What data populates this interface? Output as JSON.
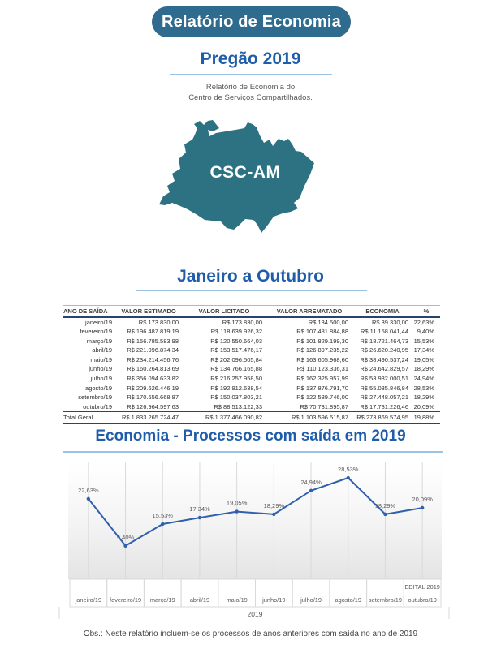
{
  "page": {
    "header_pill": "Relatório de Economia",
    "title": "Pregão 2019",
    "subtitle": {
      "line1": "Relatório de Economia do",
      "line2": "Centro de Serviços Compartilhados."
    },
    "map_label": "CSC-AM",
    "section_title": "Janeiro a Outubro",
    "note": "Obs.: Neste relatório incluem-se os processos de anos anteriores com saída no ano de 2019"
  },
  "table": {
    "columns": [
      "ANO DE SAÍDA",
      "VALOR ESTIMADO",
      "VALOR LICITADO",
      "VALOR ARREMATADO",
      "ECONOMIA",
      "%"
    ],
    "rows": [
      [
        "janeiro/19",
        "R$ 173.830,00",
        "R$ 173.830,00",
        "R$ 134.500,00",
        "R$ 39.330,00",
        "22,63%"
      ],
      [
        "fevereiro/19",
        "R$ 196.487.819,19",
        "R$ 118.639.926,32",
        "R$ 107.481.884,88",
        "R$ 11.158.041,44",
        "9,40%"
      ],
      [
        "março/19",
        "R$ 156.785.583,98",
        "R$ 120.550.664,03",
        "R$ 101.829.199,30",
        "R$ 18.721.464,73",
        "15,53%"
      ],
      [
        "abril/19",
        "R$ 221.996.874,34",
        "R$ 153.517.476,17",
        "R$ 126.897.235,22",
        "R$ 26.620.240,95",
        "17,34%"
      ],
      [
        "maio/19",
        "R$ 234.214.456,76",
        "R$ 202.096.505,84",
        "R$ 163.605.968,60",
        "R$ 38.490.537,24",
        "19,05%"
      ],
      [
        "junho/19",
        "R$ 160.264.813,69",
        "R$ 134.766.165,88",
        "R$ 110.123.336,31",
        "R$ 24.642.829,57",
        "18,29%"
      ],
      [
        "julho/19",
        "R$ 356.094.633,82",
        "R$ 216.257.958,50",
        "R$ 162.325.957,99",
        "R$ 53.932.000,51",
        "24,94%"
      ],
      [
        "agosto/19",
        "R$ 209.626.446,19",
        "R$ 192.912.638,54",
        "R$ 137.876.791,70",
        "R$ 55.035.846,84",
        "28,53%"
      ],
      [
        "setembro/19",
        "R$ 170.656.668,87",
        "R$ 150.037.803,21",
        "R$ 122.589.746,00",
        "R$ 27.448.057,21",
        "18,29%"
      ],
      [
        "outubro/19",
        "R$ 126.964.597,63",
        "R$ 88.513.122,33",
        "R$ 70.731.895,87",
        "R$ 17.781.226,46",
        "20,09%"
      ]
    ],
    "total_row": [
      "Total Geral",
      "R$ 1.833.265.724,47",
      "R$ 1.377.466.090,82",
      "R$ 1.103.596.515,87",
      "R$ 273.869.574,95",
      "19,88%"
    ]
  },
  "chart_data": {
    "type": "line",
    "title": "Economia - Processos com saída em 2019",
    "categories": [
      "janeiro/19",
      "fevereiro/19",
      "março/19",
      "abril/19",
      "maio/19",
      "junho/19",
      "julho/19",
      "agosto/19",
      "setembro/19",
      "outubro/19"
    ],
    "values": [
      22.63,
      9.4,
      15.53,
      17.34,
      19.05,
      18.29,
      24.94,
      28.53,
      18.29,
      20.09
    ],
    "point_labels": [
      "22,63%",
      "9,40%",
      "15,53%",
      "17,34%",
      "19,05%",
      "18,29%",
      "24,94%",
      "28,53%",
      "18,29%",
      "20,09%"
    ],
    "edital_label": "EDITAL 2019",
    "axis_group_label": "2019",
    "ylim": [
      0,
      33
    ],
    "grid": "vertical",
    "legend": "none",
    "line_color": "#3060AC",
    "gridline_color": "#D9D9D9",
    "axis_border_color": "#D9D9D9",
    "label_color": "#595959",
    "plot_gradient": [
      "#FFFFFF",
      "#F3F3F3",
      "#E4E4E4"
    ]
  },
  "colors": {
    "pill_background": "#2E6B8E",
    "title_blue": "#1F5CA9",
    "underline_blue": "#9CC2E5",
    "map_teal": "#2C7282",
    "table_border_navy": "#24466E",
    "muted_text": "#595959"
  }
}
